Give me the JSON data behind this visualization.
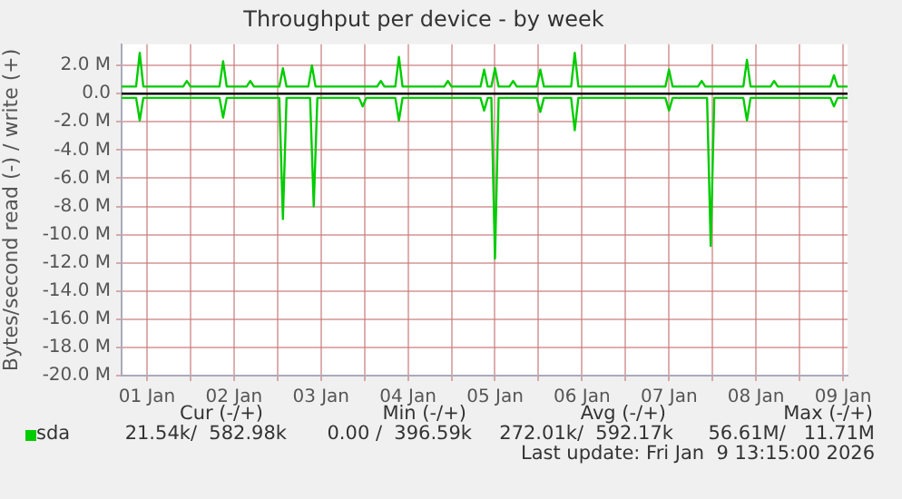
{
  "chart_data": {
    "type": "line",
    "title": "Throughput per device - by week",
    "ylabel": "Bytes/second read (-) / write (+)",
    "xlim": [
      "2026-01-01T05:00",
      "2026-01-09T13:15"
    ],
    "xticks": [
      {
        "value": "2026-01-01T12:00",
        "label": "01 Jan"
      },
      {
        "value": "2026-01-02T00:00",
        "label": null
      },
      {
        "value": "2026-01-02T12:00",
        "label": "02 Jan"
      },
      {
        "value": "2026-01-03T00:00",
        "label": null
      },
      {
        "value": "2026-01-03T12:00",
        "label": "03 Jan"
      },
      {
        "value": "2026-01-04T00:00",
        "label": null
      },
      {
        "value": "2026-01-04T12:00",
        "label": "04 Jan"
      },
      {
        "value": "2026-01-05T00:00",
        "label": null
      },
      {
        "value": "2026-01-05T12:00",
        "label": "05 Jan"
      },
      {
        "value": "2026-01-06T00:00",
        "label": null
      },
      {
        "value": "2026-01-06T12:00",
        "label": "06 Jan"
      },
      {
        "value": "2026-01-07T00:00",
        "label": null
      },
      {
        "value": "2026-01-07T12:00",
        "label": "07 Jan"
      },
      {
        "value": "2026-01-08T00:00",
        "label": null
      },
      {
        "value": "2026-01-08T12:00",
        "label": "08 Jan"
      },
      {
        "value": "2026-01-09T00:00",
        "label": null
      },
      {
        "value": "2026-01-09T12:00",
        "label": "09 Jan"
      }
    ],
    "ylim": [
      -20,
      3.5
    ],
    "yticks": [
      {
        "value": -20,
        "label": "-20.0 M"
      },
      {
        "value": -18,
        "label": "-18.0 M"
      },
      {
        "value": -16,
        "label": "-16.0 M"
      },
      {
        "value": -14,
        "label": "-14.0 M"
      },
      {
        "value": -12,
        "label": "-12.0 M"
      },
      {
        "value": -10,
        "label": "-10.0 M"
      },
      {
        "value": -8,
        "label": "-8.0 M"
      },
      {
        "value": -6,
        "label": "-6.0 M"
      },
      {
        "value": -4,
        "label": "-4.0 M"
      },
      {
        "value": -2,
        "label": "-2.0 M"
      },
      {
        "value": 0,
        "label": "0.0"
      },
      {
        "value": 2,
        "label": "2.0 M"
      }
    ],
    "grid": true,
    "legend": "bottom",
    "marker": "none",
    "line_style": "solid",
    "ref_lines": [
      {
        "axis": "y",
        "value": 0,
        "color": "#000000"
      }
    ],
    "series": [
      {
        "name": "sda",
        "color": "#00cc00",
        "x": [
          "2026-01-01T05:00",
          "2026-01-01T09:00",
          "2026-01-01T10:00",
          "2026-01-01T11:00",
          "2026-01-01T22:00",
          "2026-01-01T23:00",
          "2026-01-02T00:00",
          "2026-01-02T08:00",
          "2026-01-02T09:00",
          "2026-01-02T10:00",
          "2026-01-02T15:30",
          "2026-01-02T16:30",
          "2026-01-02T17:30",
          "2026-01-03T00:30",
          "2026-01-03T01:30",
          "2026-01-03T02:30",
          "2026-01-03T08:30",
          "2026-01-03T09:30",
          "2026-01-03T10:30",
          "2026-01-04T03:30",
          "2026-01-04T04:30",
          "2026-01-04T05:30",
          "2026-01-04T08:30",
          "2026-01-04T09:30",
          "2026-01-04T10:30",
          "2026-01-04T22:00",
          "2026-01-04T23:00",
          "2026-01-05T00:00",
          "2026-01-05T08:00",
          "2026-01-05T09:00",
          "2026-01-05T10:00",
          "2026-01-05T11:00",
          "2026-01-05T12:00",
          "2026-01-05T13:00",
          "2026-01-05T16:00",
          "2026-01-05T17:00",
          "2026-01-05T18:00",
          "2026-01-05T23:30",
          "2026-01-06T00:30",
          "2026-01-06T01:30",
          "2026-01-06T09:00",
          "2026-01-06T10:00",
          "2026-01-06T11:00",
          "2026-01-07T11:00",
          "2026-01-07T12:00",
          "2026-01-07T13:00",
          "2026-01-07T20:00",
          "2026-01-07T21:00",
          "2026-01-07T22:00",
          "2026-01-08T08:30",
          "2026-01-08T09:30",
          "2026-01-08T10:30",
          "2026-01-08T16:00",
          "2026-01-08T17:00",
          "2026-01-08T18:00",
          "2026-01-09T08:30",
          "2026-01-09T09:30",
          "2026-01-09T10:30",
          "2026-01-09T13:15"
        ],
        "values": [
          0.5,
          0.5,
          2.9,
          0.5,
          0.5,
          0.9,
          0.5,
          0.5,
          2.3,
          0.5,
          0.5,
          0.9,
          0.5,
          0.5,
          1.8,
          0.5,
          0.5,
          2.0,
          0.5,
          0.5,
          0.9,
          0.5,
          0.5,
          2.6,
          0.5,
          0.5,
          0.9,
          0.5,
          0.5,
          1.7,
          0.5,
          0.5,
          1.8,
          0.5,
          0.5,
          0.9,
          0.5,
          0.5,
          1.7,
          0.5,
          0.5,
          2.9,
          0.5,
          0.5,
          1.7,
          0.5,
          0.5,
          0.9,
          0.5,
          0.5,
          2.4,
          0.5,
          0.5,
          0.9,
          0.5,
          0.5,
          1.3,
          0.5,
          0.5
        ]
      },
      {
        "color": "#00cc00",
        "x": [
          "2026-01-01T05:00",
          "2026-01-01T09:00",
          "2026-01-01T10:00",
          "2026-01-01T11:00",
          "2026-01-02T08:00",
          "2026-01-02T09:00",
          "2026-01-02T10:00",
          "2026-01-03T00:30",
          "2026-01-03T01:30",
          "2026-01-03T02:30",
          "2026-01-03T09:00",
          "2026-01-03T10:00",
          "2026-01-03T11:00",
          "2026-01-03T22:30",
          "2026-01-03T23:30",
          "2026-01-04T00:30",
          "2026-01-04T08:30",
          "2026-01-04T09:30",
          "2026-01-04T10:30",
          "2026-01-05T08:00",
          "2026-01-05T09:00",
          "2026-01-05T10:00",
          "2026-01-05T11:00",
          "2026-01-05T12:00",
          "2026-01-05T13:00",
          "2026-01-05T23:30",
          "2026-01-06T00:30",
          "2026-01-06T01:30",
          "2026-01-06T09:00",
          "2026-01-06T10:00",
          "2026-01-06T11:00",
          "2026-01-07T11:00",
          "2026-01-07T12:00",
          "2026-01-07T13:00",
          "2026-01-07T22:30",
          "2026-01-07T23:30",
          "2026-01-08T00:30",
          "2026-01-08T08:30",
          "2026-01-08T09:30",
          "2026-01-08T10:30",
          "2026-01-09T08:30",
          "2026-01-09T09:30",
          "2026-01-09T10:30",
          "2026-01-09T13:15"
        ],
        "values": [
          -0.3,
          -0.3,
          -1.9,
          -0.3,
          -0.3,
          -1.7,
          -0.3,
          -0.3,
          -8.9,
          -0.3,
          -0.3,
          -8.0,
          -0.3,
          -0.3,
          -0.9,
          -0.3,
          -0.3,
          -1.9,
          -0.3,
          -0.3,
          -1.2,
          -0.3,
          -0.3,
          -11.7,
          -0.3,
          -0.3,
          -1.3,
          -0.3,
          -0.3,
          -2.6,
          -0.3,
          -0.3,
          -1.2,
          -0.3,
          -0.3,
          -10.8,
          -0.3,
          -0.3,
          -1.9,
          -0.3,
          -0.3,
          -0.9,
          -0.3,
          -0.3
        ]
      }
    ],
    "annotations": [
      "Cur (-/+)",
      "Min (-/+)",
      "Avg (-/+)",
      "Max (-/+)",
      "21.54k/  582.98k",
      "0.00 /  396.59k",
      "272.01k/  592.17k",
      "56.61M/   11.71M",
      "Last update: Fri Jan  9 13:15:00 2026"
    ]
  }
}
